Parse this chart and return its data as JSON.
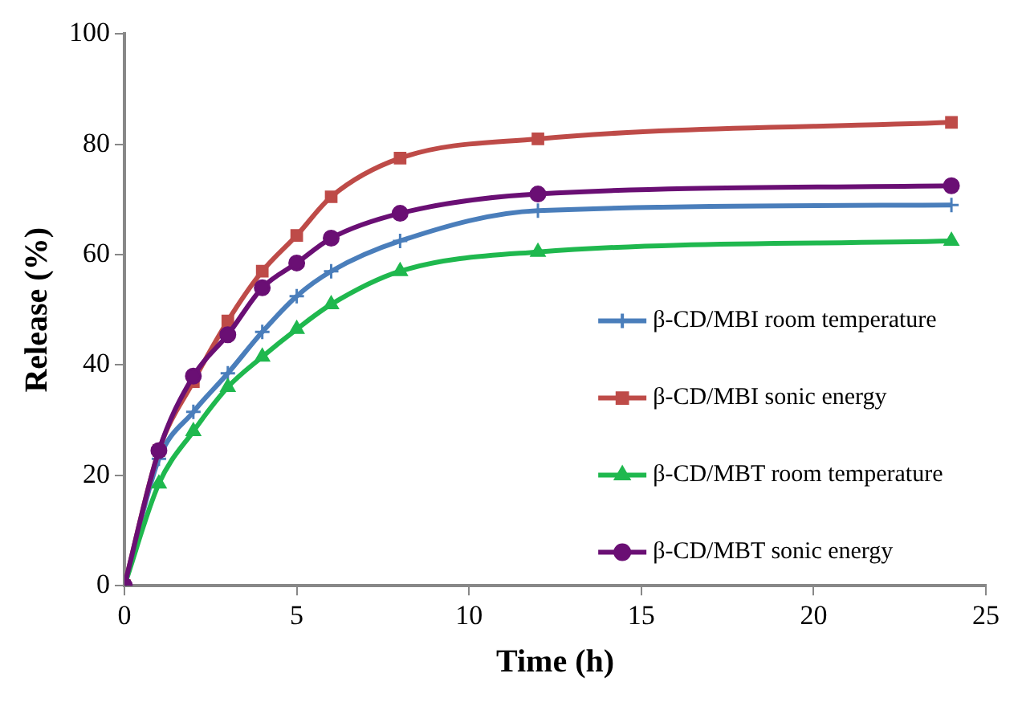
{
  "chart_data": {
    "type": "line",
    "xlabel": "Time (h)",
    "ylabel": "Release (%)",
    "xlim": [
      0,
      25
    ],
    "xticks": [
      0,
      5,
      10,
      15,
      20,
      25
    ],
    "ylim": [
      0,
      100
    ],
    "yticks": [
      0,
      20,
      40,
      60,
      80,
      100
    ],
    "grid": false,
    "legend": "right",
    "x": [
      0,
      1,
      2,
      3,
      4,
      5,
      6,
      8,
      12,
      24
    ],
    "series": [
      {
        "name": "β-CD/MBI room temperature",
        "color": "#4a7ebb",
        "marker": "cross",
        "values": [
          0,
          23,
          31.5,
          38.5,
          46,
          52.5,
          57,
          62.5,
          68,
          69
        ]
      },
      {
        "name": "β-CD/MBI sonic energy",
        "color": "#be4b48",
        "marker": "square",
        "values": [
          0,
          24.5,
          37,
          48,
          57,
          63.5,
          70.5,
          77.5,
          81,
          84
        ]
      },
      {
        "name": "β-CD/MBT room temperature",
        "color": "#1fb84e",
        "marker": "triangle",
        "values": [
          0,
          18.5,
          28,
          36,
          41.5,
          46.5,
          51,
          57,
          60.5,
          62.5
        ]
      },
      {
        "name": "β-CD/MBT sonic energy",
        "color": "#6a0f74",
        "marker": "circle",
        "values": [
          0,
          24.5,
          38,
          45.5,
          54,
          58.5,
          63,
          67.5,
          71,
          72.5
        ]
      }
    ]
  }
}
